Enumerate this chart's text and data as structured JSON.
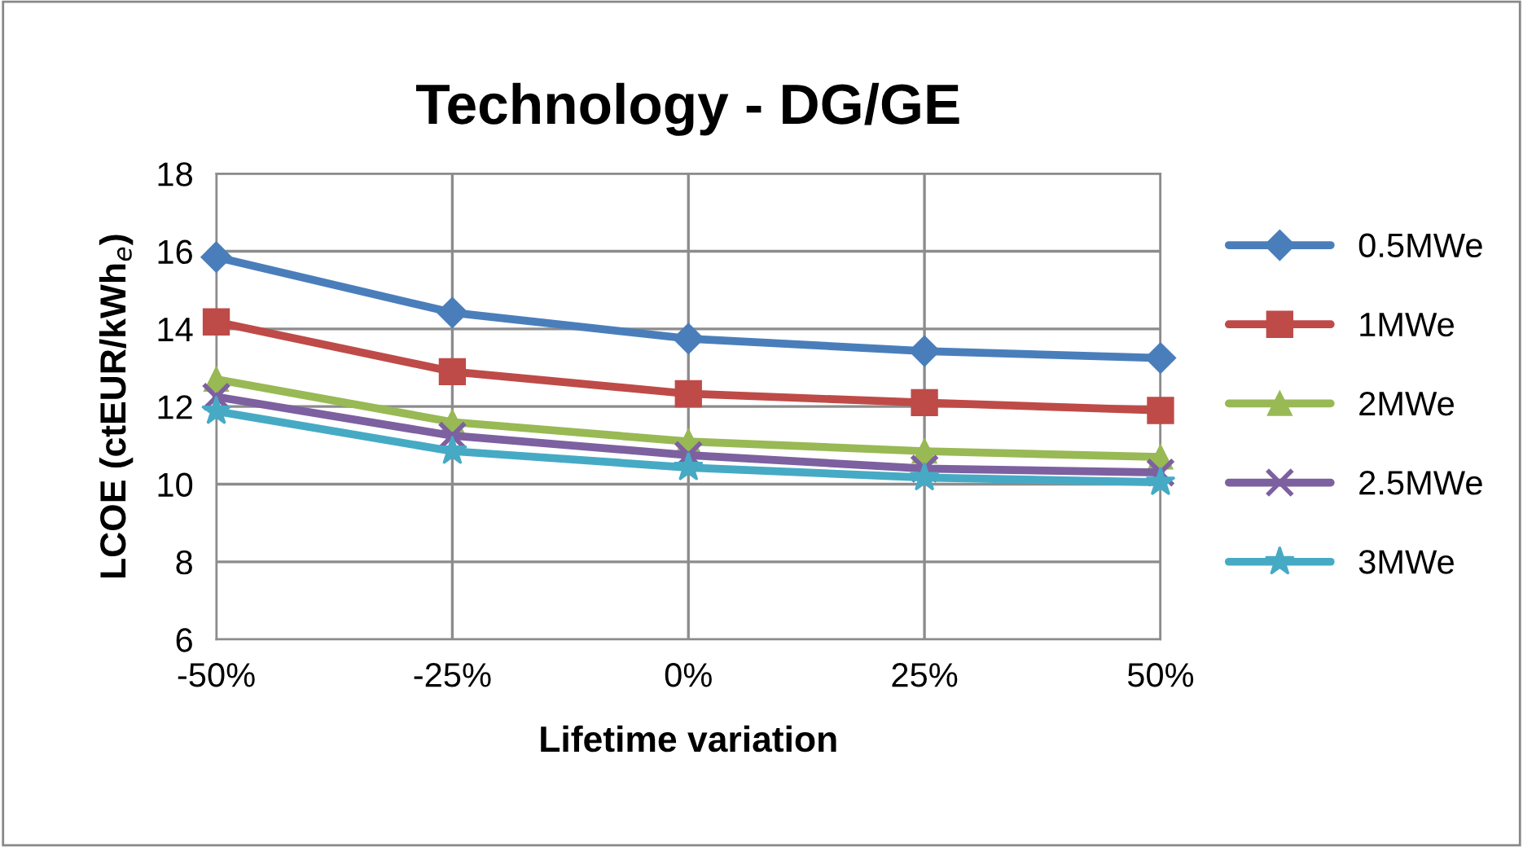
{
  "chart_data": {
    "type": "line",
    "title": "Technology - DG/GE",
    "xlabel": "Lifetime variation",
    "ylabel": "LCOE (ctEUR/kWh$_{e}$)",
    "categories": [
      "-50%",
      "-25%",
      "0%",
      "25%",
      "50%"
    ],
    "ylim": [
      6,
      18
    ],
    "yticks": [
      6,
      8,
      10,
      12,
      14,
      16,
      18
    ],
    "grid": true,
    "legend": "right",
    "series": [
      {
        "name": "0.5MWe",
        "color": "#4a7ebb",
        "marker": "diamond",
        "values": [
          15.85,
          14.42,
          13.75,
          13.43,
          13.25
        ]
      },
      {
        "name": "1MWe",
        "color": "#be4b48",
        "marker": "square",
        "values": [
          14.18,
          12.9,
          12.33,
          12.1,
          11.9
        ]
      },
      {
        "name": "2MWe",
        "color": "#98b954",
        "marker": "triangle",
        "values": [
          12.7,
          11.6,
          11.1,
          10.85,
          10.7
        ]
      },
      {
        "name": "2.5MWe",
        "color": "#7d60a0",
        "marker": "cross",
        "values": [
          12.25,
          11.25,
          10.75,
          10.4,
          10.3
        ]
      },
      {
        "name": "3MWe",
        "color": "#46aac5",
        "marker": "star",
        "values": [
          11.88,
          10.85,
          10.43,
          10.17,
          10.05
        ]
      }
    ]
  }
}
